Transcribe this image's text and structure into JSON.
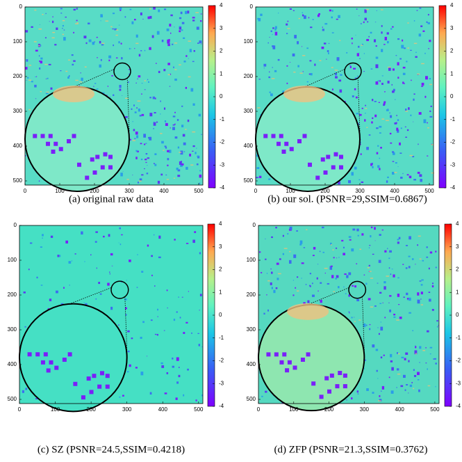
{
  "chart_data": [
    {
      "type": "heatmap",
      "caption": "(a) original raw data",
      "xlim": [
        0,
        512
      ],
      "ylim": [
        0,
        512
      ],
      "xticks": [
        0,
        100,
        200,
        300,
        400,
        500
      ],
      "yticks": [
        0,
        100,
        200,
        300,
        400,
        500
      ],
      "clim": [
        -4,
        4
      ],
      "cticks": [
        -4,
        -3,
        -2,
        -1,
        0,
        1,
        2,
        3,
        4
      ]
    },
    {
      "type": "heatmap",
      "caption": "(b) our sol. (PSNR=29,SSIM=0.6867)",
      "xlim": [
        0,
        512
      ],
      "ylim": [
        0,
        512
      ],
      "xticks": [
        0,
        100,
        200,
        300,
        400,
        500
      ],
      "yticks": [
        0,
        100,
        200,
        300,
        400,
        500
      ],
      "clim": [
        -4,
        4
      ],
      "cticks": [
        -4,
        -3,
        -2,
        -1,
        0,
        1,
        2,
        3,
        4
      ]
    },
    {
      "type": "heatmap",
      "caption": "(c) SZ (PSNR=24.5,SSIM=0.4218)",
      "xlim": [
        0,
        512
      ],
      "ylim": [
        0,
        512
      ],
      "xticks": [
        0,
        100,
        200,
        300,
        400,
        500
      ],
      "yticks": [
        0,
        100,
        200,
        300,
        400,
        500
      ],
      "clim": [
        -4,
        4
      ],
      "cticks": [
        -4,
        -3,
        -2,
        -1,
        0,
        1,
        2,
        3,
        4
      ]
    },
    {
      "type": "heatmap",
      "caption": "(d) ZFP (PSNR=21.3,SSIM=0.3762)",
      "xlim": [
        0,
        512
      ],
      "ylim": [
        0,
        512
      ],
      "xticks": [
        0,
        100,
        200,
        300,
        400,
        500
      ],
      "yticks": [
        0,
        100,
        200,
        300,
        400,
        500
      ],
      "clim": [
        -4,
        4
      ],
      "cticks": [
        -4,
        -3,
        -2,
        -1,
        0,
        1,
        2,
        3,
        4
      ]
    }
  ]
}
